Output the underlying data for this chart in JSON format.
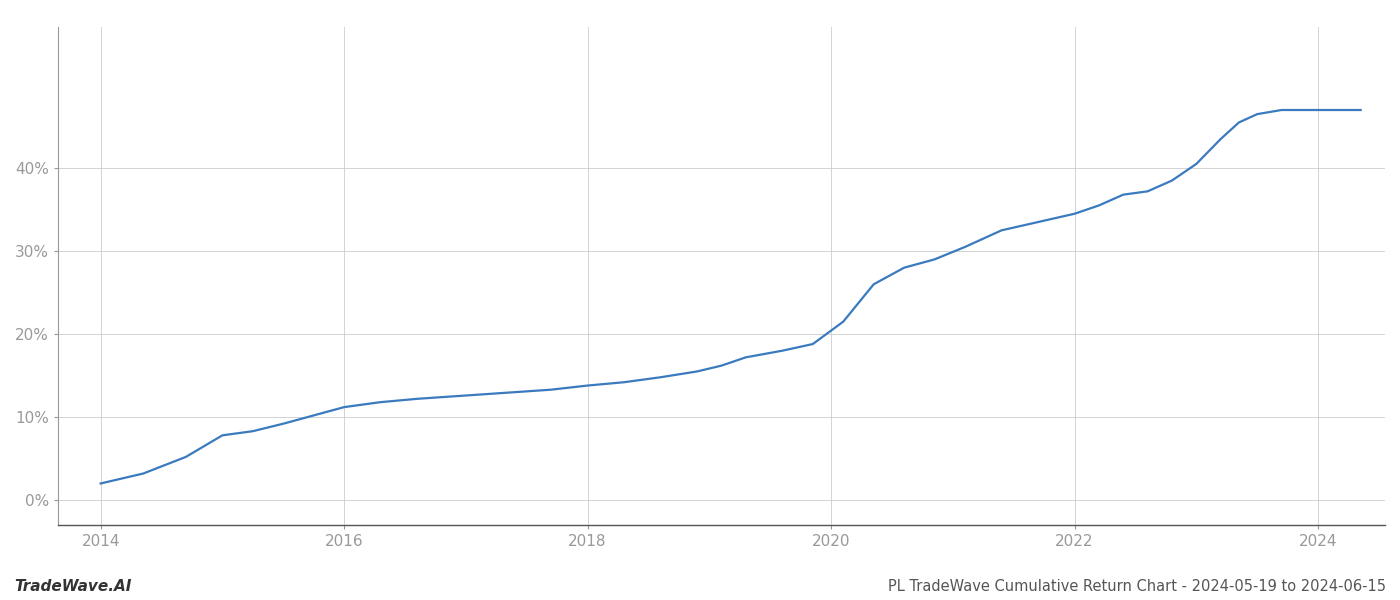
{
  "x": [
    2014.0,
    2014.35,
    2014.7,
    2015.0,
    2015.25,
    2015.5,
    2015.75,
    2016.0,
    2016.3,
    2016.6,
    2016.9,
    2017.1,
    2017.4,
    2017.7,
    2018.0,
    2018.3,
    2018.6,
    2018.9,
    2019.1,
    2019.3,
    2019.6,
    2019.85,
    2020.1,
    2020.35,
    2020.6,
    2020.85,
    2021.1,
    2021.4,
    2021.7,
    2022.0,
    2022.2,
    2022.4,
    2022.6,
    2022.8,
    2023.0,
    2023.2,
    2023.35,
    2023.5,
    2023.7,
    2023.85,
    2024.0,
    2024.35
  ],
  "y": [
    2.0,
    3.2,
    5.2,
    7.8,
    8.3,
    9.2,
    10.2,
    11.2,
    11.8,
    12.2,
    12.5,
    12.7,
    13.0,
    13.3,
    13.8,
    14.2,
    14.8,
    15.5,
    16.2,
    17.2,
    18.0,
    18.8,
    21.5,
    26.0,
    28.0,
    29.0,
    30.5,
    32.5,
    33.5,
    34.5,
    35.5,
    36.8,
    37.2,
    38.5,
    40.5,
    43.5,
    45.5,
    46.5,
    47.0,
    47.0,
    47.0,
    47.0
  ],
  "line_color": "#3a7abf",
  "line_width": 1.6,
  "title": "PL TradeWave Cumulative Return Chart - 2024-05-19 to 2024-06-15",
  "watermark": "TradeWave.AI",
  "xlim": [
    2013.65,
    2024.55
  ],
  "ylim": [
    -3,
    57
  ],
  "xticks": [
    2014,
    2016,
    2018,
    2020,
    2022,
    2024
  ],
  "yticks": [
    0,
    10,
    20,
    30,
    40
  ],
  "ytick_labels": [
    "0%",
    "10%",
    "20%",
    "30%",
    "40%"
  ],
  "grid_color": "#cccccc",
  "grid_linewidth": 0.6,
  "bg_color": "#ffffff",
  "title_fontsize": 10.5,
  "watermark_fontsize": 11,
  "tick_fontsize": 11,
  "tick_color": "#999999"
}
